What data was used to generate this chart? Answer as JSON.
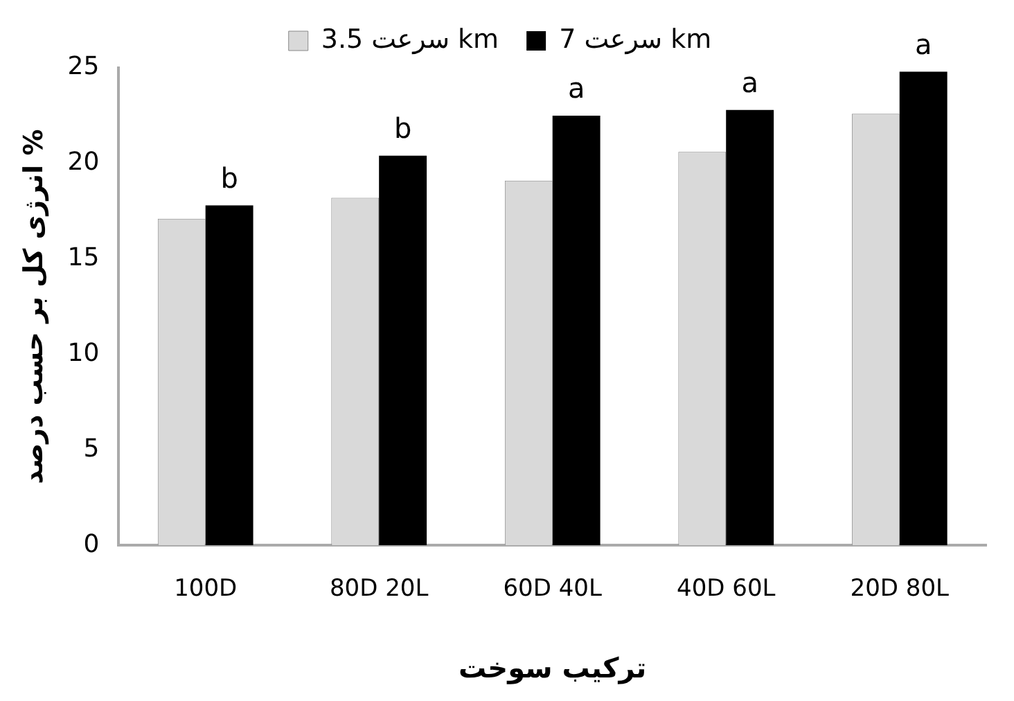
{
  "chart_data": {
    "type": "bar",
    "xlabel": "ترکیب سوخت",
    "ylabel": "انرژی کل بر حسب درصد %",
    "categories": [
      "100D",
      "80D 20L",
      "60D 40L",
      "40D 60L",
      "20D 80L"
    ],
    "series": [
      {
        "name": "سرعت 3.5 km",
        "color": "#d9d9d9",
        "values": [
          17.1,
          18.2,
          19.1,
          20.6,
          22.6
        ]
      },
      {
        "name": "سرعت 7 km",
        "color": "#000000",
        "values": [
          17.8,
          20.4,
          22.5,
          22.8,
          24.8
        ]
      }
    ],
    "ylim": [
      0,
      25
    ],
    "yticks": [
      0,
      5,
      10,
      15,
      20,
      25
    ],
    "grid": false,
    "legend": "top",
    "annotations": [
      {
        "text": "b",
        "x": "100D",
        "y": 17.8
      },
      {
        "text": "b",
        "x": "80D 20L",
        "y": 20.4
      },
      {
        "text": "a",
        "x": "60D 40L",
        "y": 22.5
      },
      {
        "text": "a",
        "x": "40D 60L",
        "y": 22.8
      },
      {
        "text": "a",
        "x": "20D 80L",
        "y": 24.8
      }
    ]
  }
}
